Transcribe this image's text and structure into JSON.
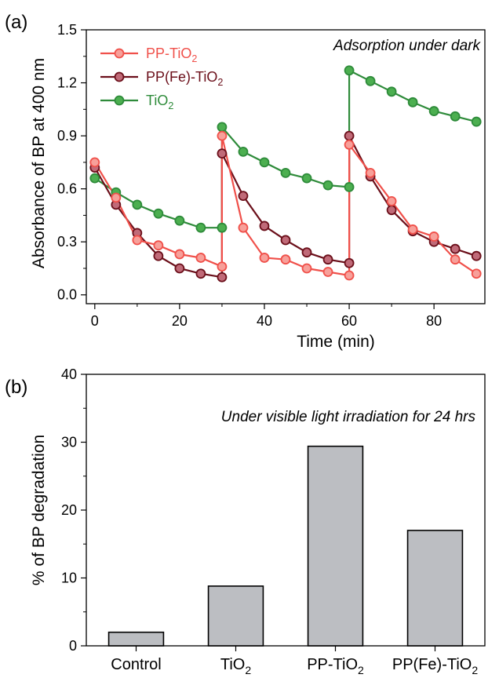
{
  "chart_data": [
    {
      "panel_label": "(a)",
      "type": "line",
      "annotation": "Adsorption under dark",
      "xlabel": "Time (min)",
      "ylabel": "Absorbance of BP at  400 nm",
      "xlim": [
        -2,
        92
      ],
      "ylim": [
        -0.05,
        1.5
      ],
      "xticks": [
        0,
        20,
        40,
        60,
        80
      ],
      "yticks": [
        0.0,
        0.3,
        0.6,
        0.9,
        1.2,
        1.5
      ],
      "ytick_labels": [
        "0.0",
        "0.3",
        "0.6",
        "0.9",
        "1.2",
        "1.5"
      ],
      "legend_position": "top-left",
      "series": [
        {
          "name": "PP-TiO",
          "name_sub": "2",
          "color": "#f0504a",
          "marker_fill": "#f7a09a",
          "x": [
            0,
            5,
            10,
            15,
            20,
            25,
            30,
            30,
            35,
            40,
            45,
            50,
            55,
            60,
            60,
            65,
            70,
            75,
            80,
            85,
            90
          ],
          "y": [
            0.75,
            0.55,
            0.31,
            0.28,
            0.23,
            0.21,
            0.16,
            0.9,
            0.38,
            0.21,
            0.2,
            0.15,
            0.13,
            0.11,
            0.85,
            0.69,
            0.53,
            0.37,
            0.33,
            0.2,
            0.12
          ]
        },
        {
          "name": "PP(Fe)-TiO",
          "name_sub": "2",
          "color": "#6b0f1a",
          "marker_fill": "#c06a78",
          "x": [
            0,
            5,
            10,
            15,
            20,
            25,
            30,
            30,
            35,
            40,
            45,
            50,
            55,
            60,
            60,
            65,
            70,
            75,
            80,
            85,
            90
          ],
          "y": [
            0.72,
            0.51,
            0.35,
            0.22,
            0.15,
            0.12,
            0.1,
            0.8,
            0.56,
            0.39,
            0.31,
            0.24,
            0.2,
            0.18,
            0.9,
            0.67,
            0.48,
            0.36,
            0.3,
            0.26,
            0.22
          ]
        },
        {
          "name": "TiO",
          "name_sub": "2",
          "color": "#2e8b3a",
          "marker_fill": "#4caf50",
          "x": [
            0,
            5,
            10,
            15,
            20,
            25,
            30,
            30,
            35,
            40,
            45,
            50,
            55,
            60,
            60,
            65,
            70,
            75,
            80,
            85,
            90
          ],
          "y": [
            0.66,
            0.58,
            0.51,
            0.46,
            0.42,
            0.38,
            0.38,
            0.95,
            0.81,
            0.75,
            0.69,
            0.66,
            0.62,
            0.61,
            1.27,
            1.21,
            1.15,
            1.09,
            1.04,
            1.01,
            0.98
          ]
        }
      ]
    },
    {
      "panel_label": "(b)",
      "type": "bar",
      "annotation": "Under visible light irradiation for 24 hrs",
      "ylabel": "% of BP degradation",
      "xlabel": "",
      "ylim": [
        0,
        40
      ],
      "yticks": [
        0,
        10,
        20,
        30,
        40
      ],
      "categories": [
        "Control",
        "TiO",
        "PP-TiO",
        "PP(Fe)-TiO"
      ],
      "category_subs": [
        "",
        "2",
        "2",
        "2"
      ],
      "values": [
        2.0,
        8.8,
        29.4,
        17.0
      ],
      "bar_color": "#bcbec2"
    }
  ]
}
